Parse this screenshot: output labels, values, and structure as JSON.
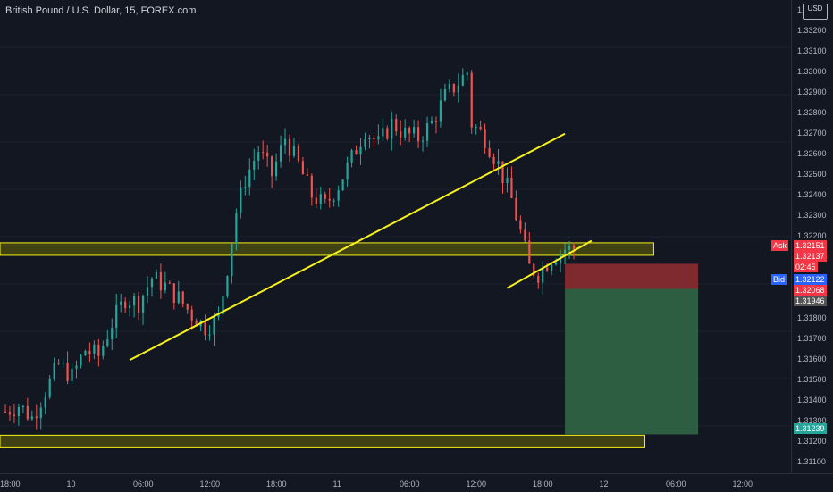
{
  "header": {
    "title": "British Pound / U.S. Dollar, 15, FOREX.com"
  },
  "price_axis": {
    "currency": "USD",
    "ticks": [
      "1.33300",
      "1.33200",
      "1.33100",
      "1.33000",
      "1.32900",
      "1.32800",
      "1.32700",
      "1.32600",
      "1.32500",
      "1.32400",
      "1.32300",
      "1.32200",
      "1.31800",
      "1.31700",
      "1.31600",
      "1.31500",
      "1.31400",
      "1.31300",
      "1.31200",
      "1.31100"
    ]
  },
  "time_axis": {
    "ticks": [
      "18:00",
      "10",
      "06:00",
      "12:00",
      "18:00",
      "11",
      "06:00",
      "12:00",
      "18:00",
      "12",
      "06:00",
      "12:00"
    ]
  },
  "price_tags": {
    "ask_label": "Ask",
    "ask_value": "1.32151",
    "last_value": "1.32137",
    "countdown": "02:45",
    "bid_label": "Bid",
    "bid_value": "1.32122",
    "stop_value": "1.32068",
    "entry_value": "1.31946",
    "target_value": "1.31239"
  },
  "colors": {
    "background": "#131722",
    "up_candle": "#26a69a",
    "down_candle": "#ef5350",
    "trendline": "#f7f21a",
    "zone_fill": "#4a4a10",
    "stop_zone": "#7f2a2e",
    "target_zone": "#2e5e41",
    "ask_tag": "#f23645",
    "bid_tag": "#2962ff"
  },
  "chart_data": {
    "type": "candlestick",
    "symbol": "GBPUSD",
    "interval": "15",
    "ylim": [
      1.3105,
      1.3335
    ],
    "x_range": [
      0,
      128
    ],
    "close_path": [
      [
        0,
        1.3135
      ],
      [
        3,
        1.3138
      ],
      [
        6,
        1.3132
      ],
      [
        9,
        1.3145
      ],
      [
        12,
        1.3158
      ],
      [
        15,
        1.3152
      ],
      [
        18,
        1.3165
      ],
      [
        21,
        1.3162
      ],
      [
        24,
        1.3178
      ],
      [
        27,
        1.319
      ],
      [
        30,
        1.3188
      ],
      [
        33,
        1.32
      ],
      [
        36,
        1.3196
      ],
      [
        39,
        1.319
      ],
      [
        42,
        1.3182
      ],
      [
        45,
        1.3176
      ],
      [
        48,
        1.318
      ],
      [
        50,
        1.3205
      ],
      [
        52,
        1.3232
      ],
      [
        54,
        1.3248
      ],
      [
        57,
        1.3262
      ],
      [
        60,
        1.325
      ],
      [
        63,
        1.3268
      ],
      [
        66,
        1.3255
      ],
      [
        69,
        1.324
      ],
      [
        72,
        1.3235
      ],
      [
        75,
        1.3245
      ],
      [
        78,
        1.3258
      ],
      [
        81,
        1.3272
      ],
      [
        84,
        1.3265
      ],
      [
        87,
        1.3275
      ],
      [
        90,
        1.327
      ],
      [
        93,
        1.3268
      ],
      [
        96,
        1.3275
      ],
      [
        99,
        1.3288
      ],
      [
        102,
        1.3295
      ],
      [
        104,
        1.33
      ],
      [
        105,
        1.3275
      ],
      [
        108,
        1.3268
      ],
      [
        111,
        1.3255
      ],
      [
        114,
        1.3238
      ],
      [
        116,
        1.3222
      ],
      [
        118,
        1.3205
      ],
      [
        120,
        1.3202
      ],
      [
        123,
        1.321
      ],
      [
        126,
        1.3214
      ],
      [
        128,
        1.3214
      ]
    ],
    "support_zones": [
      {
        "low": 1.3212,
        "high": 1.3217,
        "x_start": 0,
        "x_end": 146
      },
      {
        "low": 1.31185,
        "high": 1.31235,
        "x_start": 0,
        "x_end": 144
      }
    ],
    "trendlines": [
      {
        "from": [
          28,
          1.316
        ],
        "to": [
          126,
          1.327
        ]
      },
      {
        "from": [
          113,
          1.3195
        ],
        "to": [
          132,
          1.3218
        ]
      }
    ],
    "position": {
      "type": "short",
      "entry": 1.31946,
      "stop": 1.32068,
      "target": 1.31239,
      "x_start": 126,
      "x_end": 156
    }
  }
}
